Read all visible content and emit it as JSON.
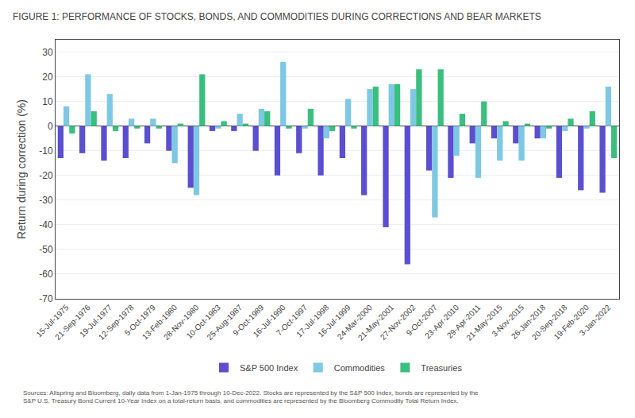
{
  "chart_data": {
    "type": "bar",
    "title": "FIGURE 1: PERFORMANCE OF STOCKS, BONDS, AND COMMODITIES DURING CORRECTIONS AND BEAR MARKETS",
    "ylabel": "Return during correction (%)",
    "annotations": [
      "Sources: Allspring and Bloomberg, daily data from 1-Jan-1975 through 10-Dec-2022. Stocks are represented by the S&P 500 Index, bonds are represented by the\nS&P U.S. Treasury Bond Current 10-Year Index on a total-return basis, and commodities are represented by the Bloomberg Commodity Total Return Index."
    ],
    "categories": [
      "15-Jul-1975",
      "21-Sep-1976",
      "19-Jul-1977",
      "12-Sep-1978",
      "5-Oct-1979",
      "13-Feb-1980",
      "28-Nov-1980",
      "10-Oct-1983",
      "25-Aug-1987",
      "9-Oct-1989",
      "16-Jul-1990",
      "7-Oct-1997",
      "17-Jul-1998",
      "16-Jul-1999",
      "24-Mar-2000",
      "21-May-2001",
      "27-Nov-2002",
      "9-Oct-2007",
      "23-Apr-2010",
      "29-Apr-2011",
      "21-May-2015",
      "3-Nov-2015",
      "26-Jan-2018",
      "20-Sep-2018",
      "19-Feb-2020",
      "3-Jan-2022"
    ],
    "series": [
      {
        "name": "S&P 500 Index",
        "color": "#5b4fcf",
        "values": [
          -13,
          -11,
          -14,
          -13,
          -7,
          -10,
          -25,
          -2,
          -2,
          -10,
          -20,
          -11,
          -20,
          -13,
          -28,
          -41,
          -56,
          -18,
          -21,
          -7,
          -5,
          -7,
          -5,
          -21,
          -26,
          -27
        ]
      },
      {
        "name": "Commodities",
        "color": "#7ec8e3",
        "values": [
          8,
          21,
          13,
          3,
          3,
          -15,
          -28,
          -1,
          5,
          7,
          26,
          -1,
          -5,
          11,
          15,
          17,
          15,
          -37,
          -12,
          -21,
          -14,
          -14,
          -5,
          -2,
          -1,
          16
        ]
      },
      {
        "name": "Treasuries",
        "color": "#3abf7e",
        "values": [
          -3,
          6,
          -2,
          -1,
          -1,
          1,
          21,
          2,
          1,
          6,
          -1,
          7,
          -2,
          -1,
          16,
          17,
          23,
          23,
          5,
          10,
          2,
          1,
          -1,
          3,
          6,
          -13
        ]
      }
    ],
    "ylim": [
      -70,
      35
    ],
    "yticks": [
      -70,
      -60,
      -50,
      -40,
      -30,
      -20,
      -10,
      0,
      10,
      20,
      30
    ],
    "grid": true,
    "legend": "bottom"
  }
}
